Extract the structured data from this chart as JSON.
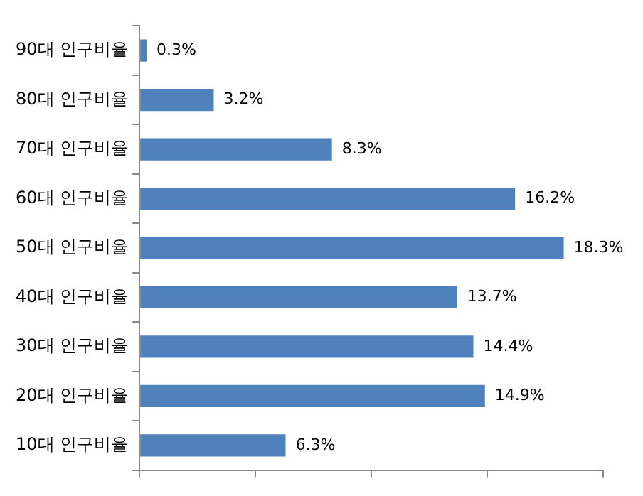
{
  "chart_data": {
    "type": "bar",
    "orientation": "horizontal",
    "categories": [
      "90대 인구비율",
      "80대 인구비율",
      "70대 인구비율",
      "60대 인구비율",
      "50대 인구비율",
      "40대 인구비율",
      "30대 인구비율",
      "20대 인구비율",
      "10대 인구비율"
    ],
    "values": [
      0.3,
      3.2,
      8.3,
      16.2,
      18.3,
      13.7,
      14.4,
      14.9,
      6.3
    ],
    "value_labels": [
      "0.3%",
      "3.2%",
      "8.3%",
      "16.2%",
      "18.3%",
      "13.7%",
      "14.4%",
      "14.9%",
      "6.3%"
    ],
    "color": "#4f81bd",
    "xlim": [
      0,
      20
    ],
    "xticks": [
      {
        "value": 0,
        "label": null
      },
      {
        "value": 5,
        "label": null
      },
      {
        "value": 10,
        "label": null
      },
      {
        "value": 15,
        "label": null
      },
      {
        "value": 20,
        "label": null
      }
    ],
    "tick_labels": "y",
    "grid": false,
    "legend": false
  }
}
